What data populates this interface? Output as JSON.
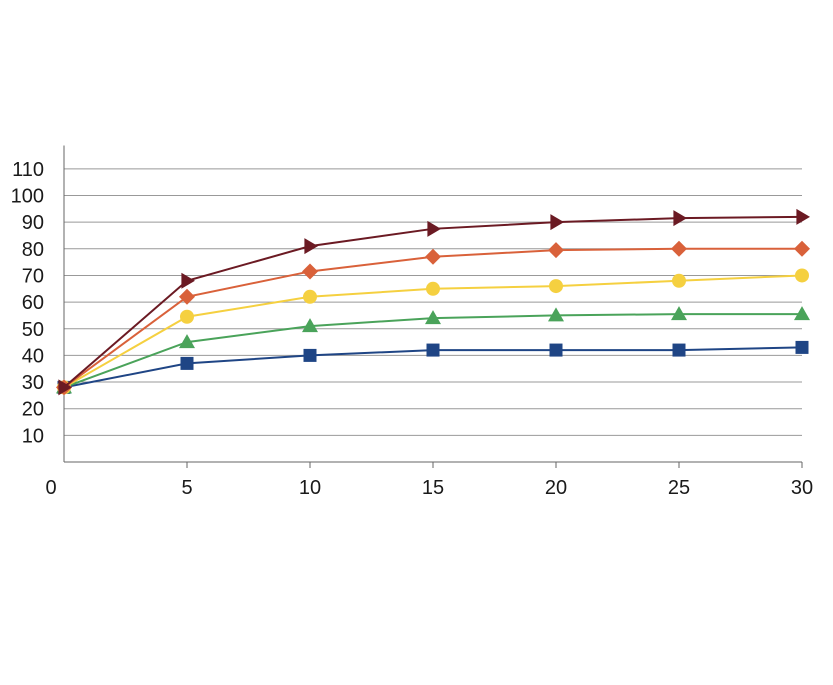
{
  "chart_data": {
    "type": "line",
    "title": "",
    "xlabel": "",
    "ylabel": "",
    "x": [
      0,
      5,
      10,
      15,
      20,
      25,
      30
    ],
    "xticks": [
      "0",
      "5",
      "10",
      "15",
      "20",
      "25",
      "30"
    ],
    "yticks": [
      "10",
      "20",
      "30",
      "40",
      "50",
      "60",
      "70",
      "80",
      "90",
      "100",
      "110"
    ],
    "xlim": [
      0,
      30
    ],
    "ylim": [
      0,
      115
    ],
    "grid": "horizontal",
    "legend": "none",
    "series": [
      {
        "marker": "square",
        "color": "#1f4585",
        "values": [
          28,
          37,
          40,
          42,
          42,
          42,
          43
        ]
      },
      {
        "marker": "triangle-up",
        "color": "#4aa35a",
        "values": [
          28,
          45,
          51,
          54,
          55,
          55.5,
          55.5
        ]
      },
      {
        "marker": "circle",
        "color": "#f5d040",
        "values": [
          28,
          54.5,
          62,
          65,
          66,
          68,
          70
        ]
      },
      {
        "marker": "diamond",
        "color": "#d9613a",
        "values": [
          28,
          62,
          71.5,
          77,
          79.5,
          80,
          80
        ]
      },
      {
        "marker": "triangle-right",
        "color": "#6b1a23",
        "values": [
          28,
          68,
          81,
          87.5,
          90,
          91.5,
          92
        ]
      }
    ]
  }
}
